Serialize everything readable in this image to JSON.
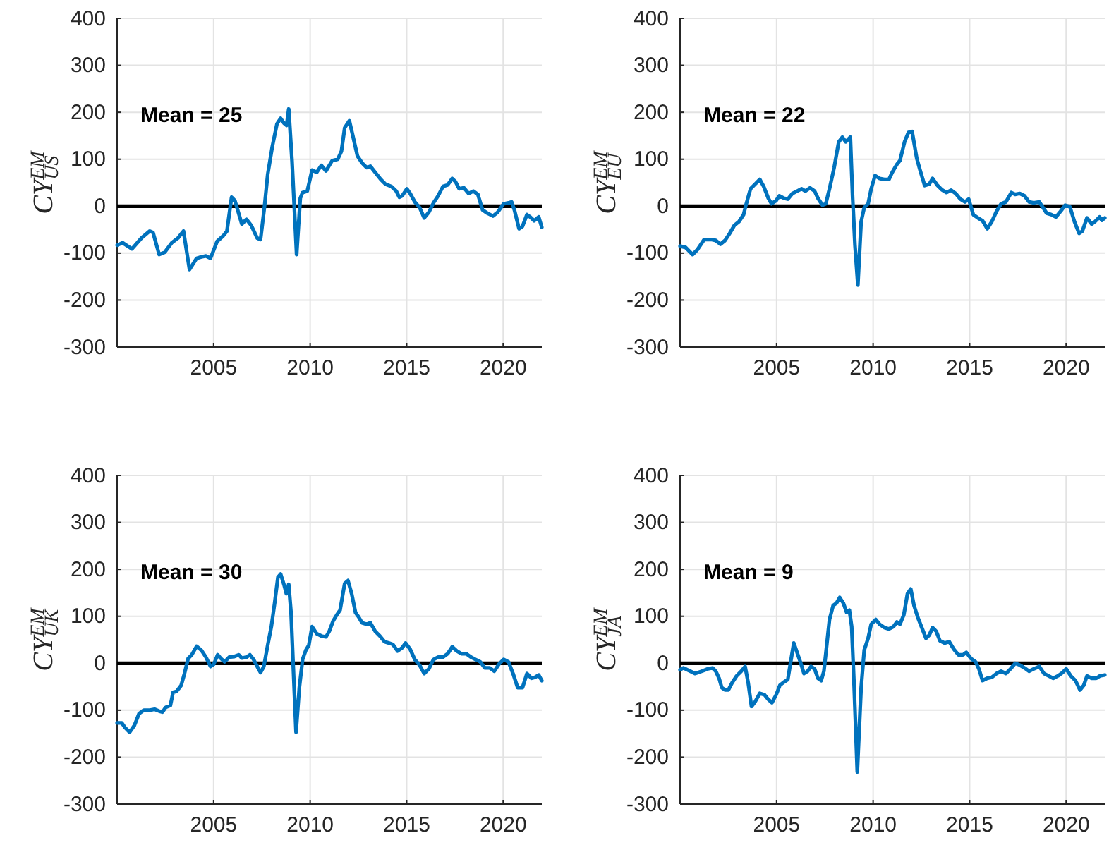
{
  "chart_data": [
    {
      "type": "line",
      "ylabel": "CY$^{EM}$$_{US}$",
      "annotations": [
        "Mean = 25"
      ],
      "grid": true,
      "xlim": [
        2000,
        2022
      ],
      "ylim": [
        -300,
        400
      ],
      "xticks": [
        2005,
        2010,
        2015,
        2020
      ],
      "yticks": [
        -300,
        -200,
        -100,
        0,
        100,
        200,
        300,
        400
      ],
      "ref_lines": [
        {
          "axis": "y",
          "value": 0,
          "color": "#000000"
        }
      ],
      "x": [
        2000.0,
        2000.29,
        2000.77,
        2001.26,
        2001.69,
        2001.86,
        2002.18,
        2002.47,
        2002.83,
        2003.15,
        2003.44,
        2003.75,
        2004.12,
        2004.36,
        2004.6,
        2004.84,
        2005.18,
        2005.5,
        2005.69,
        2005.93,
        2006.1,
        2006.46,
        2006.7,
        2006.95,
        2007.26,
        2007.43,
        2007.63,
        2007.8,
        2008.04,
        2008.28,
        2008.47,
        2008.64,
        2008.78,
        2008.89,
        2009.06,
        2009.3,
        2009.49,
        2009.61,
        2009.85,
        2010.1,
        2010.34,
        2010.58,
        2010.82,
        2011.14,
        2011.43,
        2011.62,
        2011.79,
        2012.03,
        2012.2,
        2012.45,
        2012.69,
        2012.93,
        2013.12,
        2013.37,
        2013.66,
        2013.9,
        2014.21,
        2014.46,
        2014.62,
        2014.77,
        2015.01,
        2015.18,
        2015.42,
        2015.67,
        2015.91,
        2016.15,
        2016.39,
        2016.63,
        2016.88,
        2017.12,
        2017.36,
        2017.53,
        2017.72,
        2017.97,
        2018.21,
        2018.45,
        2018.69,
        2018.93,
        2019.18,
        2019.47,
        2019.71,
        2020.02,
        2020.27,
        2020.44,
        2020.58,
        2020.82,
        2021.0,
        2021.23,
        2021.4,
        2021.6,
        2021.84,
        2022.0
      ],
      "series": [
        {
          "color": "#0072bd",
          "values": [
            -83,
            -78,
            -91,
            -68,
            -53,
            -56,
            -103,
            -98,
            -78,
            -68,
            -53,
            -135,
            -111,
            -108,
            -106,
            -111,
            -75,
            -63,
            -53,
            19,
            12,
            -38,
            -28,
            -41,
            -68,
            -71,
            -3,
            67,
            127,
            175,
            187,
            177,
            172,
            207,
            97,
            -103,
            17,
            29,
            32,
            77,
            72,
            87,
            75,
            97,
            100,
            117,
            167,
            182,
            152,
            107,
            92,
            82,
            85,
            72,
            57,
            47,
            42,
            32,
            19,
            22,
            37,
            27,
            9,
            -3,
            -25,
            -13,
            7,
            22,
            42,
            45,
            59,
            52,
            37,
            39,
            27,
            32,
            25,
            -8,
            -15,
            -21,
            -13,
            5,
            7,
            9,
            -8,
            -48,
            -43,
            -18,
            -23,
            -31,
            -23,
            -45
          ]
        }
      ]
    },
    {
      "type": "line",
      "ylabel": "CY$^{EM}$$_{EU}$",
      "annotations": [
        "Mean = 22"
      ],
      "grid": true,
      "xlim": [
        2000,
        2022
      ],
      "ylim": [
        -300,
        400
      ],
      "xticks": [
        2005,
        2010,
        2015,
        2020
      ],
      "yticks": [
        -300,
        -200,
        -100,
        0,
        100,
        200,
        300,
        400
      ],
      "ref_lines": [
        {
          "axis": "y",
          "value": 0,
          "color": "#000000"
        }
      ],
      "x": [
        2000.0,
        2000.29,
        2000.65,
        2000.89,
        2001.25,
        2001.61,
        2001.85,
        2002.09,
        2002.33,
        2002.57,
        2002.81,
        2003.05,
        2003.29,
        2003.41,
        2003.65,
        2003.89,
        2004.13,
        2004.33,
        2004.57,
        2004.74,
        2004.98,
        2005.14,
        2005.38,
        2005.58,
        2005.82,
        2006.06,
        2006.3,
        2006.49,
        2006.73,
        2006.97,
        2007.14,
        2007.38,
        2007.55,
        2007.74,
        2007.98,
        2008.22,
        2008.41,
        2008.58,
        2008.7,
        2008.82,
        2008.94,
        2009.06,
        2009.21,
        2009.38,
        2009.54,
        2009.74,
        2009.9,
        2010.1,
        2010.34,
        2010.58,
        2010.82,
        2010.99,
        2011.23,
        2011.39,
        2011.63,
        2011.83,
        2012.02,
        2012.26,
        2012.43,
        2012.67,
        2012.91,
        2013.08,
        2013.32,
        2013.56,
        2013.8,
        2014.04,
        2014.28,
        2014.52,
        2014.76,
        2014.95,
        2015.19,
        2015.43,
        2015.67,
        2015.91,
        2016.15,
        2016.39,
        2016.63,
        2016.88,
        2017.16,
        2017.36,
        2017.6,
        2017.84,
        2018.08,
        2018.32,
        2018.61,
        2018.8,
        2018.99,
        2019.23,
        2019.47,
        2019.71,
        2019.95,
        2020.19,
        2020.43,
        2020.67,
        2020.84,
        2021.08,
        2021.32,
        2021.49,
        2021.73,
        2021.85,
        2022.0
      ],
      "series": [
        {
          "color": "#0072bd",
          "values": [
            -85,
            -88,
            -103,
            -93,
            -71,
            -71,
            -73,
            -81,
            -73,
            -58,
            -41,
            -33,
            -18,
            2,
            37,
            47,
            57,
            42,
            17,
            5,
            12,
            22,
            17,
            15,
            27,
            32,
            37,
            32,
            39,
            32,
            17,
            2,
            5,
            37,
            82,
            137,
            147,
            137,
            142,
            147,
            17,
            -83,
            -168,
            -33,
            -3,
            5,
            37,
            65,
            59,
            57,
            57,
            72,
            89,
            97,
            137,
            157,
            159,
            102,
            77,
            44,
            47,
            59,
            45,
            35,
            29,
            34,
            27,
            15,
            9,
            15,
            -18,
            -25,
            -31,
            -48,
            -33,
            -11,
            5,
            9,
            29,
            25,
            27,
            22,
            9,
            7,
            9,
            -3,
            -15,
            -18,
            -23,
            -11,
            2,
            -1,
            -33,
            -58,
            -53,
            -25,
            -38,
            -33,
            -23,
            -30,
            -25
          ]
        }
      ]
    },
    {
      "type": "line",
      "ylabel": "CY$^{EM}$$_{UK}$",
      "annotations": [
        "Mean = 30"
      ],
      "grid": true,
      "xlim": [
        2000,
        2022
      ],
      "ylim": [
        -300,
        400
      ],
      "xticks": [
        2005,
        2010,
        2015,
        2020
      ],
      "yticks": [
        -300,
        -200,
        -100,
        0,
        100,
        200,
        300,
        400
      ],
      "ref_lines": [
        {
          "axis": "y",
          "value": 0,
          "color": "#000000"
        }
      ],
      "x": [
        2000.0,
        2000.24,
        2000.41,
        2000.65,
        2000.9,
        2001.14,
        2001.38,
        2001.7,
        2001.94,
        2002.18,
        2002.35,
        2002.52,
        2002.76,
        2002.9,
        2003.08,
        2003.32,
        2003.49,
        2003.68,
        2003.87,
        2004.12,
        2004.36,
        2004.6,
        2004.84,
        2005.01,
        2005.21,
        2005.38,
        2005.57,
        2005.81,
        2006.05,
        2006.3,
        2006.46,
        2006.71,
        2006.88,
        2007.07,
        2007.26,
        2007.43,
        2007.6,
        2007.8,
        2007.99,
        2008.16,
        2008.33,
        2008.47,
        2008.64,
        2008.77,
        2008.89,
        2009.01,
        2009.13,
        2009.27,
        2009.44,
        2009.61,
        2009.78,
        2009.93,
        2010.1,
        2010.34,
        2010.58,
        2010.82,
        2010.99,
        2011.19,
        2011.38,
        2011.55,
        2011.79,
        2011.96,
        2012.15,
        2012.35,
        2012.52,
        2012.69,
        2012.93,
        2013.12,
        2013.37,
        2013.61,
        2013.85,
        2014.09,
        2014.29,
        2014.53,
        2014.77,
        2014.94,
        2015.18,
        2015.42,
        2015.67,
        2015.91,
        2016.15,
        2016.39,
        2016.63,
        2016.88,
        2017.12,
        2017.36,
        2017.6,
        2017.85,
        2018.09,
        2018.33,
        2018.57,
        2018.81,
        2019.05,
        2019.3,
        2019.54,
        2019.78,
        2020.02,
        2020.27,
        2020.51,
        2020.75,
        2021.0,
        2021.23,
        2021.47,
        2021.65,
        2021.84,
        2022.0
      ],
      "series": [
        {
          "color": "#0072bd",
          "values": [
            -127,
            -127,
            -137,
            -147,
            -132,
            -107,
            -100,
            -100,
            -98,
            -102,
            -104,
            -94,
            -90,
            -62,
            -60,
            -47,
            -22,
            10,
            18,
            36,
            28,
            13,
            -7,
            -2,
            18,
            10,
            3,
            13,
            14,
            18,
            11,
            13,
            18,
            8,
            -7,
            -20,
            -7,
            38,
            78,
            128,
            183,
            190,
            168,
            148,
            168,
            108,
            -12,
            -147,
            -52,
            8,
            28,
            38,
            78,
            63,
            58,
            56,
            68,
            90,
            103,
            113,
            170,
            176,
            148,
            108,
            98,
            86,
            83,
            86,
            68,
            58,
            46,
            43,
            40,
            26,
            33,
            43,
            30,
            8,
            -4,
            -22,
            -12,
            8,
            13,
            13,
            20,
            35,
            26,
            20,
            20,
            13,
            8,
            3,
            -10,
            -10,
            -17,
            -2,
            8,
            3,
            -22,
            -52,
            -52,
            -22,
            -32,
            -30,
            -25,
            -37
          ]
        }
      ]
    },
    {
      "type": "line",
      "ylabel": "CY$^{EM}$$_{JA}$",
      "annotations": [
        "Mean = 9"
      ],
      "grid": true,
      "xlim": [
        2000,
        2022
      ],
      "ylim": [
        -300,
        400
      ],
      "xticks": [
        2005,
        2010,
        2015,
        2020
      ],
      "yticks": [
        -300,
        -200,
        -100,
        0,
        100,
        200,
        300,
        400
      ],
      "ref_lines": [
        {
          "axis": "y",
          "value": 0,
          "color": "#000000"
        }
      ],
      "x": [
        2000.0,
        2000.17,
        2000.53,
        2000.77,
        2001.13,
        2001.44,
        2001.68,
        2001.85,
        2002.02,
        2002.16,
        2002.33,
        2002.5,
        2002.69,
        2002.93,
        2003.17,
        2003.37,
        2003.53,
        2003.7,
        2003.89,
        2004.13,
        2004.37,
        2004.57,
        2004.76,
        2004.98,
        2005.17,
        2005.38,
        2005.58,
        2005.75,
        2005.89,
        2006.06,
        2006.23,
        2006.42,
        2006.61,
        2006.78,
        2006.97,
        2007.14,
        2007.31,
        2007.45,
        2007.57,
        2007.74,
        2007.93,
        2008.1,
        2008.27,
        2008.46,
        2008.63,
        2008.77,
        2008.89,
        2009.01,
        2009.18,
        2009.38,
        2009.54,
        2009.74,
        2009.9,
        2010.14,
        2010.34,
        2010.58,
        2010.82,
        2011.06,
        2011.23,
        2011.39,
        2011.59,
        2011.78,
        2011.95,
        2012.12,
        2012.31,
        2012.55,
        2012.74,
        2012.91,
        2013.08,
        2013.27,
        2013.46,
        2013.7,
        2013.94,
        2014.18,
        2014.42,
        2014.66,
        2014.83,
        2015.07,
        2015.31,
        2015.48,
        2015.67,
        2015.91,
        2016.15,
        2016.39,
        2016.63,
        2016.88,
        2017.12,
        2017.36,
        2017.6,
        2017.84,
        2018.08,
        2018.32,
        2018.61,
        2018.85,
        2019.09,
        2019.33,
        2019.57,
        2019.81,
        2020.0,
        2020.24,
        2020.48,
        2020.72,
        2020.91,
        2021.08,
        2021.32,
        2021.56,
        2021.75,
        2022.0
      ],
      "series": [
        {
          "color": "#0072bd",
          "values": [
            -14,
            -10,
            -17,
            -22,
            -17,
            -12,
            -10,
            -17,
            -32,
            -52,
            -57,
            -57,
            -42,
            -27,
            -17,
            -7,
            -42,
            -92,
            -82,
            -64,
            -67,
            -77,
            -84,
            -67,
            -47,
            -40,
            -35,
            8,
            43,
            23,
            3,
            -22,
            -17,
            -7,
            -12,
            -32,
            -37,
            -17,
            28,
            93,
            123,
            128,
            140,
            128,
            108,
            113,
            78,
            -42,
            -232,
            -52,
            28,
            53,
            83,
            93,
            83,
            76,
            73,
            78,
            88,
            83,
            103,
            148,
            158,
            123,
            98,
            73,
            53,
            60,
            76,
            68,
            48,
            43,
            46,
            30,
            18,
            18,
            23,
            10,
            3,
            -12,
            -37,
            -32,
            -30,
            -22,
            -17,
            -22,
            -12,
            0,
            -4,
            -10,
            -17,
            -12,
            -7,
            -22,
            -27,
            -32,
            -27,
            -20,
            -12,
            -27,
            -37,
            -57,
            -47,
            -27,
            -32,
            -32,
            -27,
            -25
          ]
        }
      ]
    }
  ]
}
